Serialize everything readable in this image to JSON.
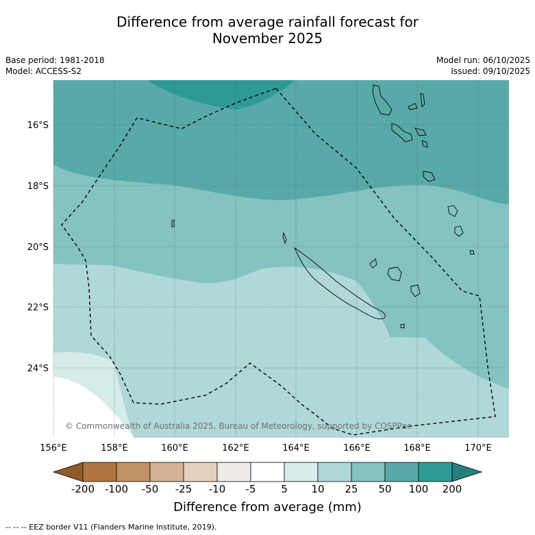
{
  "header": {
    "title_line1": "Difference from average rainfall forecast for",
    "title_line2": "November 2025",
    "base_period": "Base period: 1981-2018",
    "model": "Model: ACCESS-S2",
    "model_run": "Model run: 06/10/2025",
    "issued": "Issued: 09/10/2025"
  },
  "map": {
    "lat_labels": [
      "16°S",
      "18°S",
      "20°S",
      "22°S",
      "24°S"
    ],
    "lon_labels": [
      "156°E",
      "158°E",
      "160°E",
      "162°E",
      "164°E",
      "166°E",
      "168°E",
      "170°E"
    ],
    "copyright": "© Commonwealth of Australia 2025, Bureau of Meteorology, supported by COSPPac",
    "colors": {
      "c100": "#2f9995",
      "c50": "#58aaa9",
      "c25": "#84c3c2",
      "c10": "#afd8d7",
      "c5": "#d6eceb",
      "c0": "#ffffff"
    }
  },
  "colorbar": {
    "ticks": [
      "-200",
      "-100",
      "-50",
      "-25",
      "-10",
      "-5",
      "5",
      "10",
      "25",
      "50",
      "100",
      "200"
    ],
    "colors": [
      "#b07540",
      "#c29265",
      "#d5b293",
      "#e6d1be",
      "#efebe7",
      "#ffffff",
      "#d6eceb",
      "#afd8d7",
      "#84c3c2",
      "#58aaa9",
      "#2f9995"
    ],
    "under_color": "#8f5a2c",
    "over_color": "#277f7c",
    "label": "Difference from average (mm)"
  },
  "legend": {
    "text": "--  --  -- EEZ border V11 (Flanders Marine Institute, 2019)."
  }
}
